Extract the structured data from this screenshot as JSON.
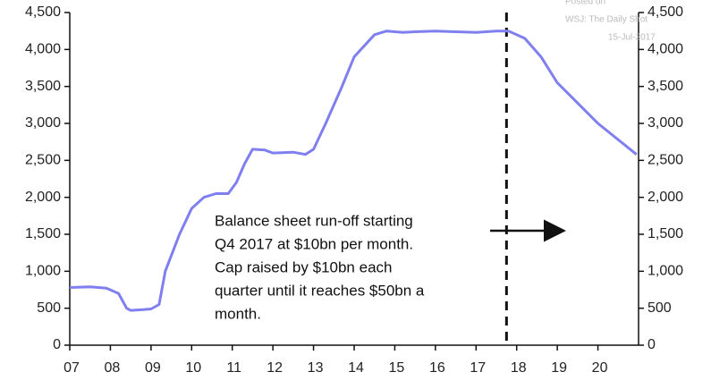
{
  "chart_data": {
    "type": "line",
    "x": [
      2007.0,
      2007.5,
      2007.9,
      2008.2,
      2008.4,
      2008.5,
      2008.8,
      2009.0,
      2009.2,
      2009.35,
      2009.7,
      2010.0,
      2010.3,
      2010.6,
      2010.9,
      2011.1,
      2011.3,
      2011.5,
      2011.8,
      2012.0,
      2012.5,
      2012.8,
      2013.0,
      2013.3,
      2013.7,
      2014.0,
      2014.5,
      2014.8,
      2015.2,
      2015.5,
      2016.0,
      2016.5,
      2017.0,
      2017.5,
      2017.8,
      2018.2,
      2018.6,
      2019.0,
      2020.0,
      2020.95
    ],
    "series": [
      {
        "color": "#7f7ff0",
        "values": [
          780,
          790,
          770,
          700,
          500,
          470,
          480,
          490,
          550,
          1000,
          1500,
          1850,
          2000,
          2050,
          2050,
          2200,
          2450,
          2650,
          2640,
          2600,
          2610,
          2580,
          2650,
          3000,
          3500,
          3900,
          4200,
          4250,
          4230,
          4240,
          4250,
          4240,
          4230,
          4250,
          4250,
          4150,
          3900,
          3550,
          3000,
          2580
        ]
      }
    ],
    "xlim": [
      2007,
      2021
    ],
    "xticks": [
      {
        "value": 2007,
        "label": "07"
      },
      {
        "value": 2008,
        "label": "08"
      },
      {
        "value": 2009,
        "label": "09"
      },
      {
        "value": 2010,
        "label": "10"
      },
      {
        "value": 2011,
        "label": "11"
      },
      {
        "value": 2012,
        "label": "12"
      },
      {
        "value": 2013,
        "label": "13"
      },
      {
        "value": 2014,
        "label": "14"
      },
      {
        "value": 2015,
        "label": "15"
      },
      {
        "value": 2016,
        "label": "16"
      },
      {
        "value": 2017,
        "label": "17"
      },
      {
        "value": 2018,
        "label": "18"
      },
      {
        "value": 2019,
        "label": "19"
      },
      {
        "value": 2020,
        "label": "20"
      }
    ],
    "ylim": [
      0,
      4500
    ],
    "yticks": [
      0,
      500,
      {
        "value": 1000,
        "label": "1,000"
      },
      {
        "value": 1500,
        "label": "1,500"
      },
      {
        "value": 2000,
        "label": "2,000"
      },
      {
        "value": 2500,
        "label": "2,500"
      },
      {
        "value": 3000,
        "label": "3,000"
      },
      {
        "value": 3500,
        "label": "3,500"
      },
      {
        "value": 4000,
        "label": "4,000"
      },
      {
        "value": 4500,
        "label": "4,500"
      }
    ],
    "y2lim": [
      0,
      4500
    ],
    "y2ticks": [
      0,
      500,
      {
        "value": 1000,
        "label": "1,000"
      },
      {
        "value": 1500,
        "label": "1,500"
      },
      {
        "value": 2000,
        "label": "2,000"
      },
      {
        "value": 2500,
        "label": "2,500"
      },
      {
        "value": 3000,
        "label": "3,000"
      },
      {
        "value": 3500,
        "label": "3,500"
      },
      {
        "value": 4000,
        "label": "4,000"
      },
      {
        "value": 4500,
        "label": "4,500"
      }
    ],
    "vline": 2017.75,
    "annotation": [
      "Balance sheet run-off starting",
      "Q4 2017 at $10bn per month.",
      "Cap raised by $10bn each",
      "quarter until it reaches $50bn a",
      "month."
    ],
    "watermark": [
      "Posted on",
      "WSJ: The Daily Shot",
      "15-Jul-2017"
    ]
  }
}
